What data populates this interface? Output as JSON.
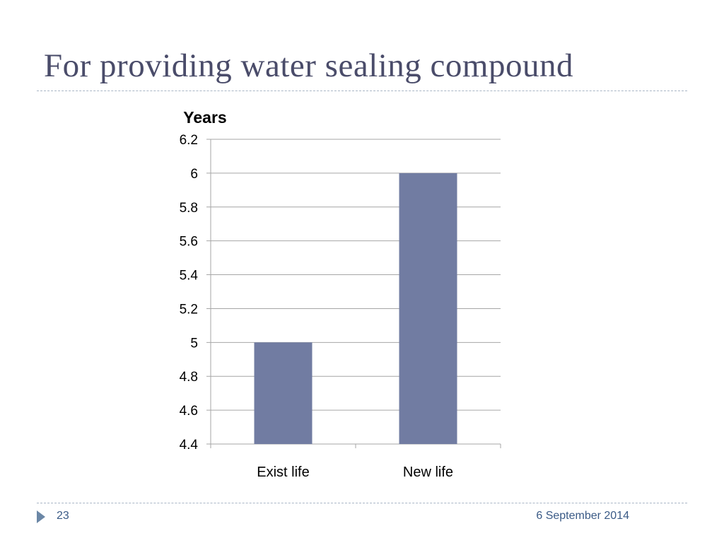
{
  "slide": {
    "title": "For providing water sealing compound",
    "number": "23",
    "date": "6 September 2014"
  },
  "colors": {
    "title": "#4a4c6a",
    "bar": "#717ca2",
    "grid": "#a6a6a6",
    "footer_text": "#3a5a86",
    "footer_arrow": "#6b87a6"
  },
  "icons": {
    "footer_marker": "triangle-right-icon"
  },
  "chart_data": {
    "type": "bar",
    "title": "Years",
    "xlabel": "",
    "ylabel": "",
    "categories": [
      "Exist life",
      "New life"
    ],
    "values": [
      5,
      6
    ],
    "ylim": [
      4.4,
      6.2
    ],
    "yticks": [
      "6.2",
      "6",
      "5.8",
      "5.6",
      "5.4",
      "5.2",
      "5",
      "4.8",
      "4.6",
      "4.4"
    ],
    "grid": true,
    "legend": "none"
  }
}
